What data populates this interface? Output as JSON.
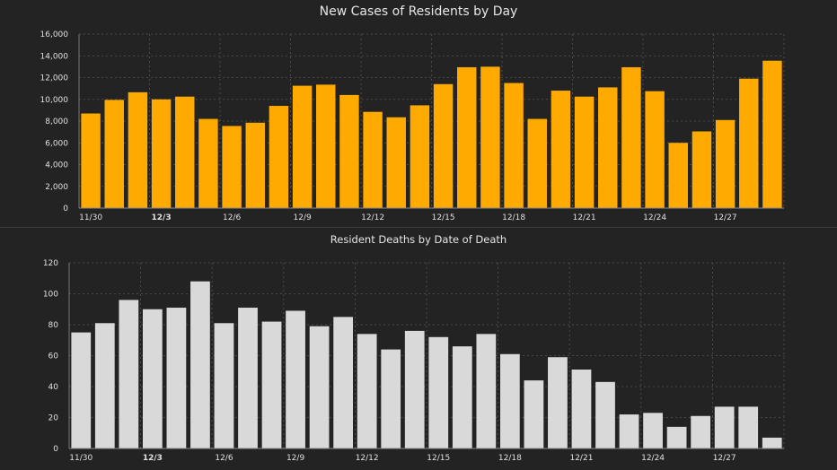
{
  "colors": {
    "background": "#232323",
    "cases_bar": "#FFAA00",
    "deaths_bar": "#D9D9D9",
    "grid": "#555555",
    "text": "#E0E0E0"
  },
  "chart_data": [
    {
      "type": "bar",
      "title": "New Cases of Residents by Day",
      "xlabel": "",
      "ylabel": "",
      "categories": [
        "11/30",
        "12/1",
        "12/2",
        "12/3",
        "12/4",
        "12/5",
        "12/6",
        "12/7",
        "12/8",
        "12/9",
        "12/10",
        "12/11",
        "12/12",
        "12/13",
        "12/14",
        "12/15",
        "12/16",
        "12/17",
        "12/18",
        "12/19",
        "12/20",
        "12/21",
        "12/22",
        "12/23",
        "12/24",
        "12/25",
        "12/26",
        "12/27",
        "12/28",
        "12/29"
      ],
      "values": [
        8700,
        9950,
        10650,
        10000,
        10250,
        8200,
        7550,
        7850,
        9400,
        11250,
        11350,
        10400,
        8850,
        8350,
        9450,
        11400,
        12950,
        13000,
        11500,
        8200,
        10800,
        10250,
        11100,
        12950,
        10750,
        6000,
        7050,
        8100,
        11900,
        13550
      ],
      "x_tick_labels": [
        "11/30",
        "12/3",
        "12/6",
        "12/9",
        "12/12",
        "12/15",
        "12/18",
        "12/21",
        "12/24",
        "12/27"
      ],
      "bold_tick": "12/3",
      "y_ticks": [
        "0",
        "2,000",
        "4,000",
        "6,000",
        "8,000",
        "10,000",
        "12,000",
        "14,000",
        "16,000"
      ],
      "ylim": [
        0,
        16000
      ],
      "grid": true,
      "color": "#FFAA00"
    },
    {
      "type": "bar",
      "title": "Resident Deaths by Date of Death",
      "xlabel": "",
      "ylabel": "",
      "categories": [
        "11/30",
        "12/1",
        "12/2",
        "12/3",
        "12/4",
        "12/5",
        "12/6",
        "12/7",
        "12/8",
        "12/9",
        "12/10",
        "12/11",
        "12/12",
        "12/13",
        "12/14",
        "12/15",
        "12/16",
        "12/17",
        "12/18",
        "12/19",
        "12/20",
        "12/21",
        "12/22",
        "12/23",
        "12/24",
        "12/25",
        "12/26",
        "12/27",
        "12/28",
        "12/29"
      ],
      "values": [
        75,
        81,
        96,
        90,
        91,
        108,
        81,
        91,
        82,
        89,
        79,
        85,
        74,
        64,
        76,
        72,
        66,
        74,
        61,
        44,
        59,
        51,
        43,
        22,
        23,
        14,
        21,
        27,
        27,
        7
      ],
      "x_tick_labels": [
        "11/30",
        "12/3",
        "12/6",
        "12/9",
        "12/12",
        "12/15",
        "12/18",
        "12/21",
        "12/24",
        "12/27"
      ],
      "bold_tick": "12/3",
      "y_ticks": [
        "0",
        "20",
        "40",
        "60",
        "80",
        "100",
        "120"
      ],
      "ylim": [
        0,
        120
      ],
      "grid": true,
      "color": "#D9D9D9"
    }
  ]
}
